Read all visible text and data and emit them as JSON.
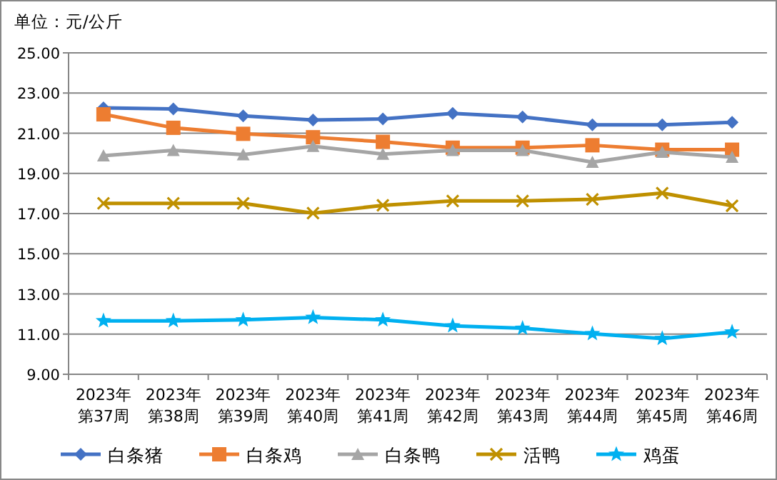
{
  "chart_data": {
    "type": "line",
    "ylabel": "单位：元/公斤",
    "categories": [
      "2023年第37周",
      "2023年第38周",
      "2023年第39周",
      "2023年第40周",
      "2023年第41周",
      "2023年第42周",
      "2023年第43周",
      "2023年第44周",
      "2023年第45周",
      "2023年第46周"
    ],
    "series": [
      {
        "name": "白条猪",
        "color": "#4472c4",
        "marker": "diamond",
        "values": [
          22.26,
          22.21,
          21.86,
          21.66,
          21.71,
          21.99,
          21.81,
          21.42,
          21.42,
          21.54
        ]
      },
      {
        "name": "白条鸡",
        "color": "#ed7d31",
        "marker": "square",
        "values": [
          21.94,
          21.27,
          20.97,
          20.8,
          20.57,
          20.28,
          20.28,
          20.4,
          20.18,
          20.18
        ]
      },
      {
        "name": "白条鸭",
        "color": "#a5a5a5",
        "marker": "triangle",
        "values": [
          19.88,
          20.15,
          19.93,
          20.35,
          19.96,
          20.15,
          20.15,
          19.56,
          20.06,
          19.81
        ]
      },
      {
        "name": "活鸭",
        "color": "#bf9000",
        "marker": "cross",
        "values": [
          17.51,
          17.51,
          17.51,
          17.02,
          17.41,
          17.63,
          17.63,
          17.71,
          18.02,
          17.39
        ]
      },
      {
        "name": "鸡蛋",
        "color": "#00b0f0",
        "marker": "star",
        "values": [
          11.66,
          11.66,
          11.71,
          11.83,
          11.71,
          11.41,
          11.29,
          11.02,
          10.78,
          11.1
        ]
      }
    ],
    "ylim": [
      9,
      25
    ],
    "yticks": [
      {
        "value": 9,
        "label": "9.00"
      },
      {
        "value": 11,
        "label": "11.00"
      },
      {
        "value": 13,
        "label": "13.00"
      },
      {
        "value": 15,
        "label": "15.00"
      },
      {
        "value": 17,
        "label": "17.00"
      },
      {
        "value": 19,
        "label": "19.00"
      },
      {
        "value": 21,
        "label": "21.00"
      },
      {
        "value": 23,
        "label": "23.00"
      },
      {
        "value": 25,
        "label": "25.00"
      }
    ],
    "grid": "y",
    "legend": "bottom",
    "line_style": "solid"
  }
}
